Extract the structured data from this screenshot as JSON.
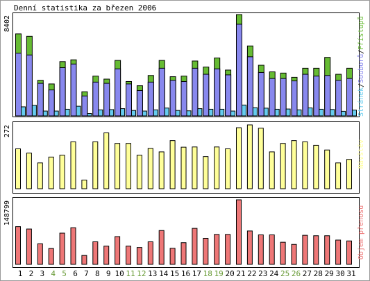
{
  "title": "Denní statistika za březen 2006",
  "colors": {
    "background": "#ffffff",
    "panel_border": "#000000",
    "pristupy": "#66bb33",
    "soubory": "#8888ee",
    "stranek": "#66ccee",
    "navstev": "#ffff99",
    "prenos": "#ee7777",
    "weekday_label": "#000000",
    "weekend_label": "#669933"
  },
  "chart_data": [
    {
      "type": "bar",
      "panel": "hits",
      "categories": [
        "1",
        "2",
        "3",
        "4",
        "5",
        "6",
        "7",
        "8",
        "9",
        "10",
        "11",
        "12",
        "13",
        "14",
        "15",
        "16",
        "17",
        "18",
        "19",
        "20",
        "21",
        "22",
        "23",
        "24",
        "25",
        "26",
        "27",
        "28",
        "29",
        "30",
        "31"
      ],
      "weekend_days": [
        "4",
        "5",
        "11",
        "12",
        "18",
        "19",
        "25",
        "26"
      ],
      "ymax_label": "8402",
      "ylim": [
        0,
        8402
      ],
      "side_label_parts": [
        "Stránek",
        "/",
        "Souborů",
        "/",
        "Přístupů"
      ],
      "series": [
        {
          "name": "Přístupů",
          "values": [
            6800,
            6600,
            2950,
            2650,
            4500,
            4650,
            2000,
            3300,
            3050,
            4600,
            2850,
            2500,
            3350,
            4600,
            3250,
            3300,
            4550,
            4050,
            4800,
            3800,
            8402,
            5800,
            4200,
            3650,
            3550,
            3200,
            3950,
            3950,
            4850,
            3450,
            3950
          ]
        },
        {
          "name": "Souborů",
          "values": [
            5200,
            5050,
            2700,
            2150,
            4000,
            4300,
            1650,
            2800,
            2700,
            3900,
            2650,
            2100,
            2800,
            3950,
            2950,
            2850,
            3950,
            3450,
            3900,
            3400,
            7600,
            4900,
            3600,
            3100,
            3100,
            2900,
            3450,
            3300,
            3350,
            2950,
            3100
          ]
        },
        {
          "name": "Stránek",
          "values": [
            750,
            880,
            400,
            400,
            550,
            800,
            200,
            500,
            520,
            600,
            450,
            400,
            500,
            650,
            450,
            420,
            600,
            550,
            550,
            400,
            900,
            680,
            640,
            550,
            570,
            500,
            660,
            550,
            530,
            380,
            480
          ]
        }
      ]
    },
    {
      "type": "bar",
      "panel": "visits",
      "categories": [
        "1",
        "2",
        "3",
        "4",
        "5",
        "6",
        "7",
        "8",
        "9",
        "10",
        "11",
        "12",
        "13",
        "14",
        "15",
        "16",
        "17",
        "18",
        "19",
        "20",
        "21",
        "22",
        "23",
        "24",
        "25",
        "26",
        "27",
        "28",
        "29",
        "30",
        "31"
      ],
      "ymax_label": "272",
      "ylim": [
        0,
        272
      ],
      "side_label": "Návštěv",
      "series": [
        {
          "name": "Návštěv",
          "values": [
            170,
            152,
            110,
            135,
            143,
            200,
            37,
            200,
            238,
            193,
            193,
            143,
            172,
            157,
            205,
            177,
            178,
            137,
            178,
            170,
            260,
            272,
            258,
            157,
            193,
            205,
            200,
            185,
            165,
            110,
            125
          ]
        }
      ]
    },
    {
      "type": "bar",
      "panel": "transfer",
      "categories": [
        "1",
        "2",
        "3",
        "4",
        "5",
        "6",
        "7",
        "8",
        "9",
        "10",
        "11",
        "12",
        "13",
        "14",
        "15",
        "16",
        "17",
        "18",
        "19",
        "20",
        "21",
        "22",
        "23",
        "24",
        "25",
        "26",
        "27",
        "28",
        "29",
        "30",
        "31"
      ],
      "ymax_label": "148799",
      "ylim": [
        0,
        148799
      ],
      "side_label": "Objem přenosu",
      "series": [
        {
          "name": "Objem přenosu",
          "values": [
            87000,
            81500,
            47500,
            36500,
            72000,
            84500,
            20500,
            52000,
            42000,
            64000,
            42000,
            39000,
            52000,
            78000,
            37000,
            50000,
            83000,
            60000,
            69000,
            69000,
            148799,
            77000,
            68000,
            68000,
            51000,
            46000,
            67000,
            66000,
            66000,
            56000,
            54000
          ]
        }
      ]
    }
  ]
}
